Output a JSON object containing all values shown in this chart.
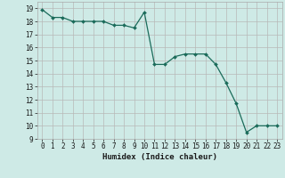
{
  "x": [
    0,
    1,
    2,
    3,
    4,
    5,
    6,
    7,
    8,
    9,
    10,
    11,
    12,
    13,
    14,
    15,
    16,
    17,
    18,
    19,
    20,
    21,
    22,
    23
  ],
  "y": [
    18.9,
    18.3,
    18.3,
    18.0,
    18.0,
    18.0,
    18.0,
    17.7,
    17.7,
    17.5,
    18.7,
    14.7,
    14.7,
    15.3,
    15.5,
    15.5,
    15.5,
    14.7,
    13.3,
    11.7,
    9.5,
    10.0,
    10.0,
    10.0
  ],
  "line_color": "#1a6b5a",
  "marker": "D",
  "markersize": 2.0,
  "linewidth": 0.9,
  "bg_color": "#ceeae6",
  "grid_color": "#b8b8b8",
  "minor_grid_color": "#d8d8d8",
  "xlabel": "Humidex (Indice chaleur)",
  "xlim": [
    -0.5,
    23.5
  ],
  "ylim": [
    9,
    19.5
  ],
  "yticks": [
    9,
    10,
    11,
    12,
    13,
    14,
    15,
    16,
    17,
    18,
    19
  ],
  "xticks": [
    0,
    1,
    2,
    3,
    4,
    5,
    6,
    7,
    8,
    9,
    10,
    11,
    12,
    13,
    14,
    15,
    16,
    17,
    18,
    19,
    20,
    21,
    22,
    23
  ],
  "tick_fontsize": 5.5,
  "xlabel_fontsize": 6.5
}
